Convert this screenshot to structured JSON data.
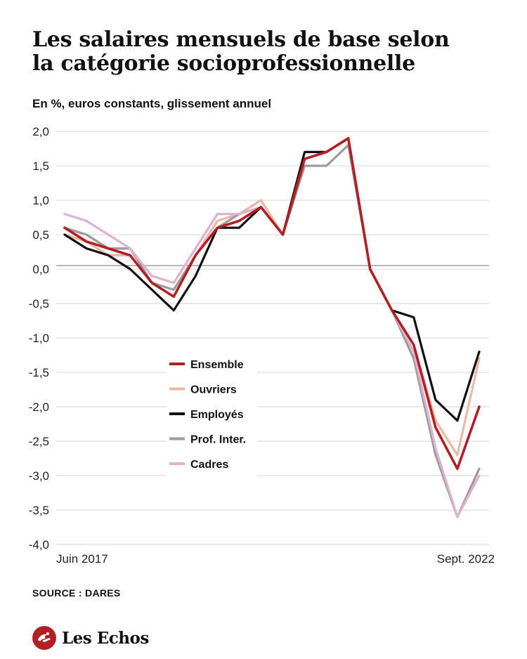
{
  "header": {
    "title_line1": "Les salaires mensuels de base selon",
    "title_line2": "la catégorie socioprofessionnelle",
    "subtitle": "En %, euros constants, glissement annuel"
  },
  "footer": {
    "source": "SOURCE : DARES",
    "brand": "Les Echos"
  },
  "chart_data": {
    "type": "line",
    "title": "Les salaires mensuels de base selon la catégorie socioprofessionnelle",
    "subtitle": "En %, euros constants, glissement annuel",
    "x_start_label": "Juin 2017",
    "x_end_label": "Sept. 2022",
    "ylim": [
      -4.0,
      2.0
    ],
    "yticks": [
      "2,0",
      "1,5",
      "1,0",
      "0,5",
      "0,0",
      "-0,5",
      "-1,0",
      "-1,5",
      "-2,0",
      "-2,5",
      "-3,0",
      "-3,5",
      "-4,0"
    ],
    "grid": true,
    "legend_position": "center-left",
    "series": [
      {
        "name": "Ouvriers",
        "color": "#e8b9a4",
        "values": [
          0.5,
          0.4,
          0.2,
          0.2,
          -0.2,
          -0.4,
          0.2,
          0.7,
          0.8,
          1.0,
          0.5,
          1.6,
          1.7,
          1.9,
          0.0,
          -0.6,
          -1.1,
          -2.2,
          -2.7,
          -1.3
        ]
      },
      {
        "name": "Prof. Inter.",
        "color": "#9b9b9b",
        "values": [
          0.6,
          0.5,
          0.3,
          0.3,
          -0.2,
          -0.3,
          0.2,
          0.6,
          0.8,
          0.9,
          0.5,
          1.5,
          1.5,
          1.8,
          0.0,
          -0.6,
          -1.3,
          -2.7,
          -3.6,
          -2.9
        ]
      },
      {
        "name": "Cadres",
        "color": "#e0b2d1",
        "values": [
          0.8,
          0.7,
          0.5,
          0.3,
          -0.1,
          -0.2,
          0.3,
          0.8,
          0.8,
          0.9,
          0.5,
          1.7,
          1.7,
          1.9,
          0.0,
          -0.6,
          -1.2,
          -2.6,
          -3.6,
          -3.0
        ]
      },
      {
        "name": "Employés",
        "color": "#111111",
        "values": [
          0.5,
          0.3,
          0.2,
          0.0,
          -0.3,
          -0.6,
          -0.1,
          0.6,
          0.6,
          0.9,
          0.5,
          1.7,
          1.7,
          1.9,
          0.0,
          -0.6,
          -0.7,
          -1.9,
          -2.2,
          -1.2
        ]
      },
      {
        "name": "Ensemble",
        "color": "#b31f24",
        "values": [
          0.6,
          0.4,
          0.3,
          0.2,
          -0.2,
          -0.4,
          0.2,
          0.6,
          0.7,
          0.9,
          0.5,
          1.6,
          1.7,
          1.9,
          0.0,
          -0.6,
          -1.1,
          -2.3,
          -2.9,
          -2.0
        ]
      }
    ],
    "legend_order": [
      "Ensemble",
      "Ouvriers",
      "Employés",
      "Prof. Inter.",
      "Cadres"
    ]
  }
}
